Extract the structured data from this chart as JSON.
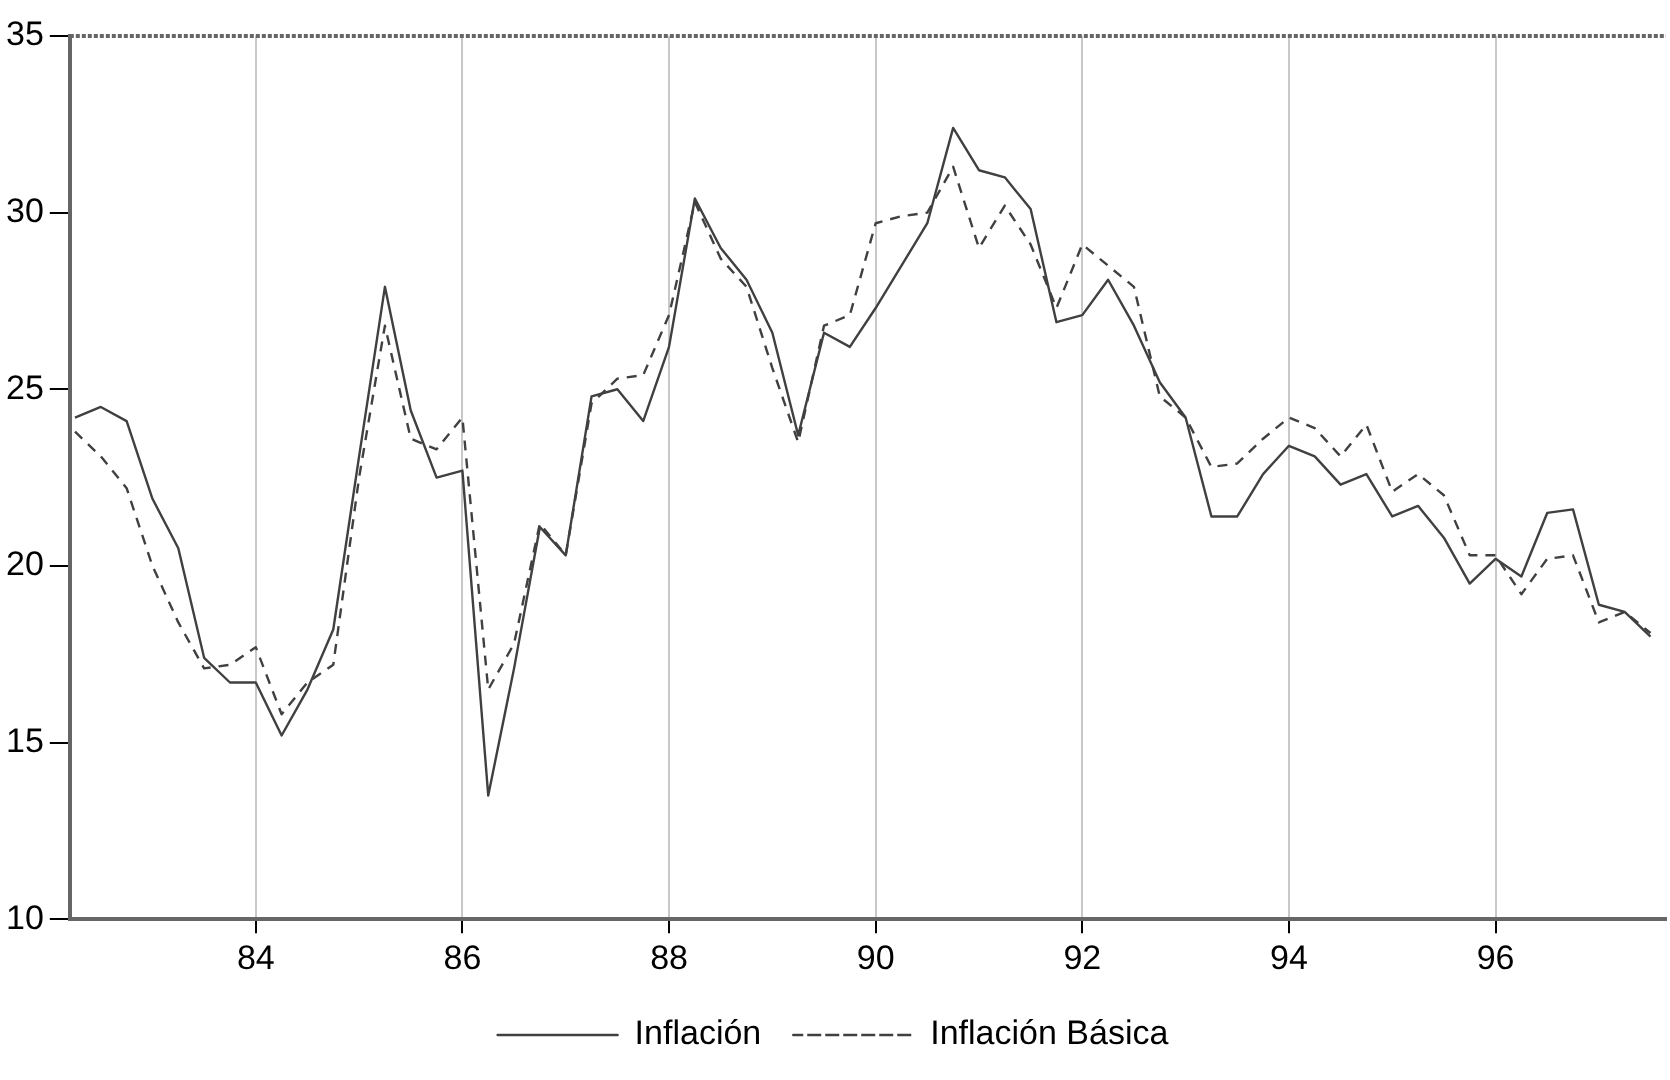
{
  "chart_data": {
    "type": "line",
    "x": [
      82.25,
      82.5,
      82.75,
      83,
      83.25,
      83.5,
      83.75,
      84,
      84.25,
      84.5,
      84.75,
      85,
      85.25,
      85.5,
      85.75,
      86,
      86.25,
      86.5,
      86.75,
      87,
      87.25,
      87.5,
      87.75,
      88,
      88.25,
      88.5,
      88.75,
      89,
      89.25,
      89.5,
      89.75,
      90,
      90.25,
      90.5,
      90.75,
      91,
      91.25,
      91.5,
      91.75,
      92,
      92.25,
      92.5,
      92.75,
      93,
      93.25,
      93.5,
      93.75,
      94,
      94.25,
      94.5,
      94.75,
      95,
      95.25,
      95.5,
      95.75,
      96,
      96.25,
      96.5,
      96.75,
      97,
      97.25,
      97.5
    ],
    "series": [
      {
        "name": "Inflación",
        "color": "#404040",
        "line_style": "solid",
        "values": [
          24.2,
          24.5,
          24.1,
          21.9,
          20.5,
          17.4,
          16.7,
          16.7,
          15.2,
          16.5,
          18.2,
          23.1,
          27.9,
          24.4,
          22.5,
          22.7,
          13.5,
          17.1,
          21.1,
          20.3,
          24.8,
          25.0,
          24.1,
          26.2,
          30.4,
          29.0,
          28.1,
          26.6,
          23.7,
          26.6,
          26.2,
          27.3,
          28.5,
          29.7,
          32.4,
          31.2,
          31.0,
          30.1,
          26.9,
          27.1,
          28.1,
          26.8,
          25.2,
          24.2,
          21.4,
          21.4,
          22.6,
          23.4,
          23.1,
          22.3,
          22.6,
          21.4,
          21.7,
          20.8,
          19.5,
          20.2,
          19.7,
          21.5,
          21.6,
          18.9,
          18.7,
          18.0
        ]
      },
      {
        "name": "Inflación Básica",
        "color": "#404040",
        "line_style": "dashed",
        "values": [
          23.8,
          23.1,
          22.2,
          20.0,
          18.4,
          17.1,
          17.2,
          17.7,
          15.8,
          16.7,
          17.2,
          22.5,
          26.8,
          23.6,
          23.3,
          24.2,
          16.5,
          17.8,
          21.2,
          20.3,
          24.6,
          25.3,
          25.4,
          27.1,
          30.3,
          28.7,
          27.9,
          25.6,
          23.5,
          26.8,
          27.1,
          29.7,
          29.9,
          30.0,
          31.3,
          29.0,
          30.2,
          29.1,
          27.3,
          29.1,
          28.5,
          27.9,
          24.8,
          24.2,
          22.8,
          22.9,
          23.6,
          24.2,
          23.9,
          23.1,
          24.0,
          22.1,
          22.6,
          22.0,
          20.3,
          20.3,
          19.2,
          20.2,
          20.3,
          18.4,
          18.7,
          18.1
        ]
      }
    ],
    "xlim": [
      82.2,
      97.65
    ],
    "xticks": [
      84,
      86,
      88,
      90,
      92,
      94,
      96
    ],
    "ylim": [
      10,
      35
    ],
    "yticks": [
      10,
      15,
      20,
      25,
      30,
      35
    ],
    "grid": "x",
    "legend": "bottom",
    "marker": "none"
  }
}
